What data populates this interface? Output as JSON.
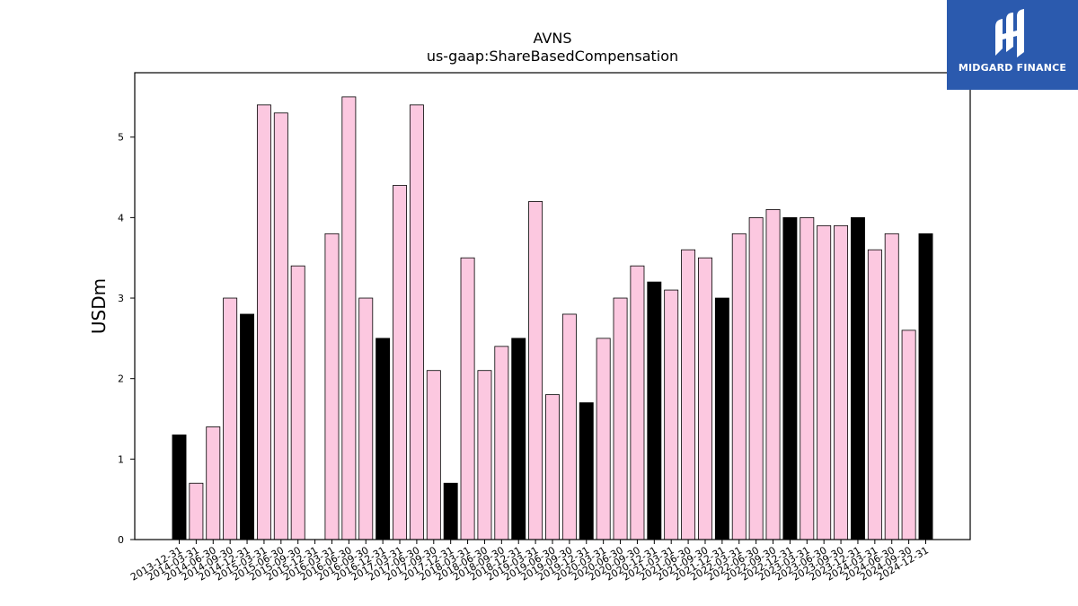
{
  "chart_data": {
    "type": "bar",
    "title": "AVNS",
    "subtitle": "us-gaap:ShareBasedCompensation",
    "xlabel": "",
    "ylabel": "USDm",
    "ylim": [
      0,
      5.8
    ],
    "yticks": [
      0,
      1,
      2,
      3,
      4,
      5
    ],
    "grid": false,
    "colors": {
      "quarter": "#fcc8e0",
      "annual": "#000000",
      "edge": "#000000"
    },
    "categories": [
      "2013-12-31",
      "2014-03-31",
      "2014-06-30",
      "2014-09-30",
      "2014-12-31",
      "2015-03-31",
      "2015-06-30",
      "2015-09-30",
      "2015-12-31",
      "2016-03-31",
      "2016-06-30",
      "2016-09-30",
      "2016-12-31",
      "2017-03-31",
      "2017-06-30",
      "2017-09-30",
      "2017-12-31",
      "2018-03-31",
      "2018-06-30",
      "2018-09-30",
      "2018-12-31",
      "2019-03-31",
      "2019-06-30",
      "2019-09-30",
      "2019-12-31",
      "2020-03-31",
      "2020-06-30",
      "2020-09-30",
      "2020-12-31",
      "2021-03-31",
      "2021-06-30",
      "2021-09-30",
      "2021-12-31",
      "2022-03-31",
      "2022-06-30",
      "2022-09-30",
      "2022-12-31",
      "2023-03-31",
      "2023-06-30",
      "2023-09-30",
      "2023-12-31",
      "2024-03-31",
      "2024-06-30",
      "2024-09-30",
      "2024-12-31"
    ],
    "values": [
      1.3,
      0.7,
      1.4,
      3.0,
      2.8,
      5.4,
      5.3,
      3.4,
      0,
      3.8,
      5.5,
      3.0,
      2.5,
      4.4,
      5.4,
      2.1,
      0.7,
      3.5,
      2.1,
      2.4,
      2.5,
      4.2,
      1.8,
      2.8,
      1.7,
      2.5,
      3.0,
      3.4,
      3.2,
      3.1,
      3.6,
      3.5,
      3.0,
      3.8,
      4.0,
      4.1,
      4.0,
      4.0,
      3.9,
      3.9,
      4.0,
      3.6,
      3.8,
      2.6,
      3.8
    ],
    "annual": [
      true,
      false,
      false,
      false,
      true,
      false,
      false,
      false,
      true,
      false,
      false,
      false,
      true,
      false,
      false,
      false,
      true,
      false,
      false,
      false,
      true,
      false,
      false,
      false,
      true,
      false,
      false,
      false,
      true,
      false,
      false,
      false,
      true,
      false,
      false,
      false,
      true,
      false,
      false,
      false,
      true,
      false,
      false,
      false,
      true
    ]
  },
  "logo": {
    "text": "MIDGARD FINANCE",
    "background": "#2b5aae"
  }
}
